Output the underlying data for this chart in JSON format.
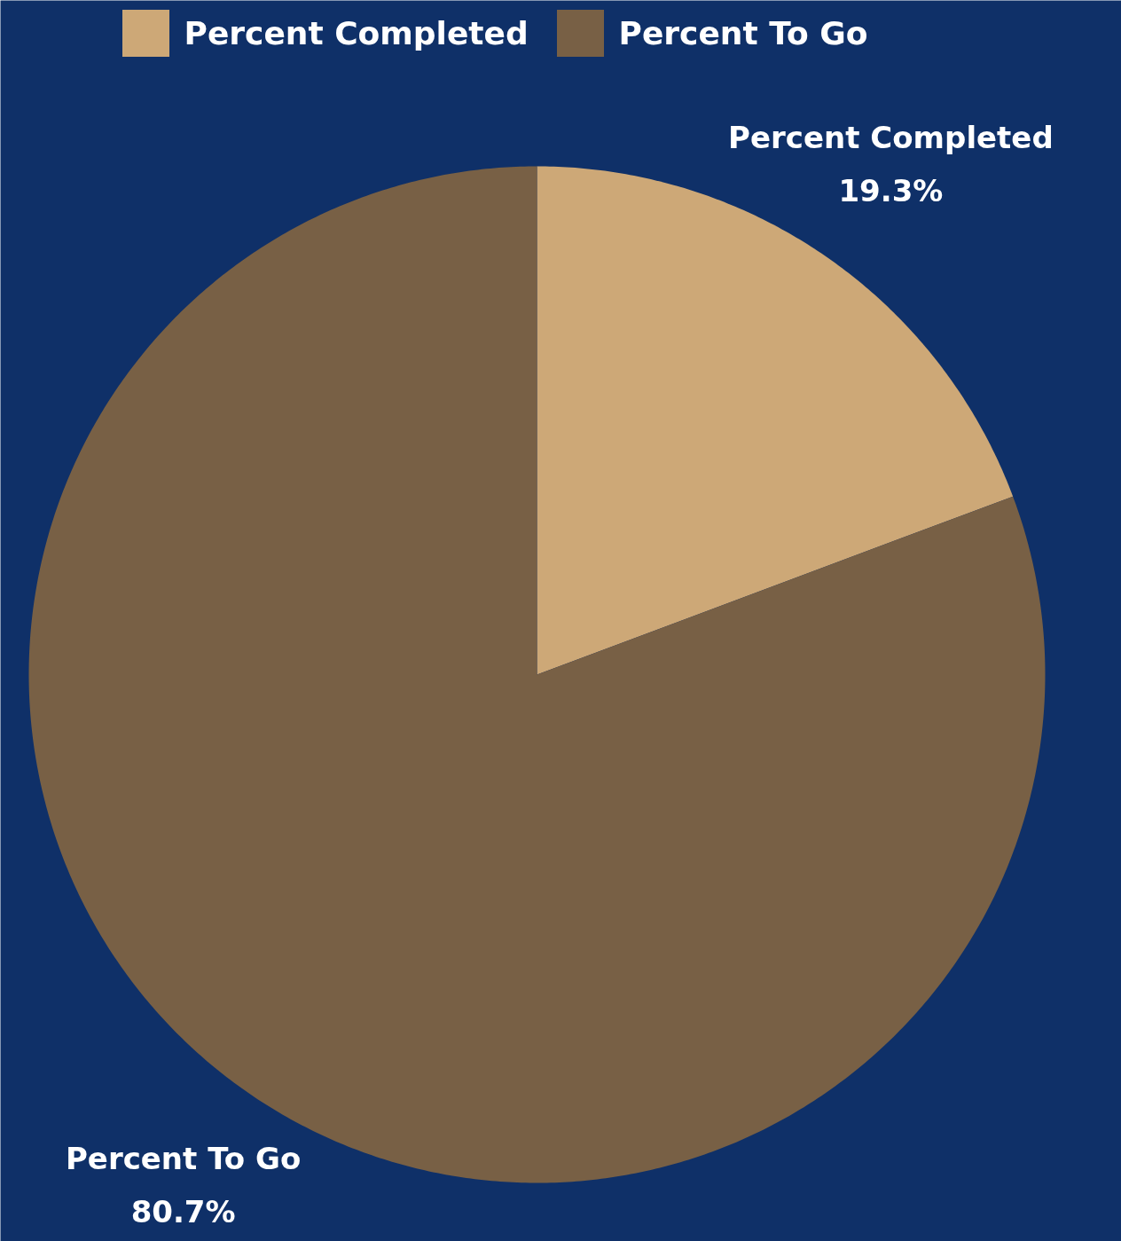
{
  "chart_data": {
    "type": "pie",
    "categories": [
      "Percent Completed",
      "Percent To Go"
    ],
    "values": [
      19.3,
      80.7
    ],
    "colors": [
      "#cda877",
      "#786045"
    ],
    "value_labels": [
      "19.3%",
      "80.7%"
    ],
    "legend": "top"
  }
}
